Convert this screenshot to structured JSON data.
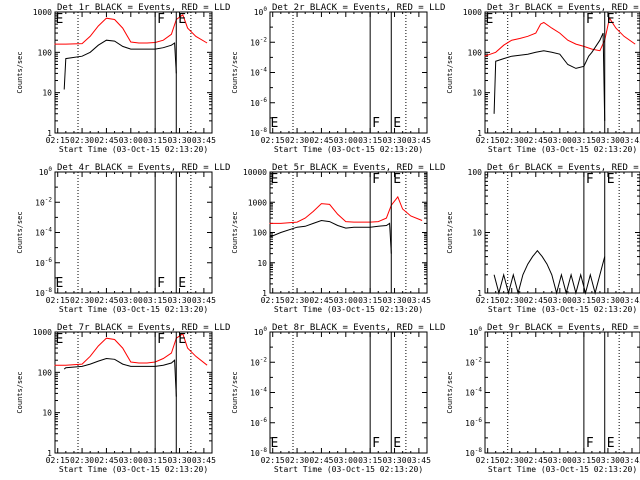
{
  "chart_data": [
    {
      "title": "Det 1r BLACK = Events, RED = LLD",
      "type": "line",
      "ylabel": "Counts/sec",
      "xlabel": "Start Time (03-Oct-15 02:13:20)",
      "yscale": "log",
      "ylim": [
        1,
        1000
      ],
      "yticks": [
        "1",
        "10",
        "100",
        "1000"
      ],
      "xticks": [
        "02:15",
        "02:30",
        "02:45",
        "03:00",
        "03:15",
        "03:30",
        "03:45"
      ],
      "markers": [
        {
          "label": "E",
          "x": "02:13"
        },
        {
          "label": "F",
          "x": "03:15"
        },
        {
          "label": "E",
          "x": "03:28"
        }
      ],
      "series": [
        {
          "color": "#ff0000",
          "x": [
            "02:13",
            "02:20",
            "02:30",
            "02:35",
            "02:40",
            "02:45",
            "02:50",
            "02:55",
            "03:00",
            "03:05",
            "03:10",
            "03:15",
            "03:20",
            "03:25",
            "03:28",
            "03:32",
            "03:35",
            "03:40",
            "03:47"
          ],
          "values": [
            160,
            160,
            165,
            250,
            450,
            700,
            650,
            400,
            180,
            170,
            170,
            175,
            200,
            280,
            650,
            850,
            400,
            250,
            170
          ]
        },
        {
          "color": "#000000",
          "x": [
            "02:19",
            "02:20",
            "02:30",
            "02:35",
            "02:40",
            "02:45",
            "02:50",
            "02:55",
            "03:00",
            "03:05",
            "03:10",
            "03:15",
            "03:20",
            "03:25",
            "03:27",
            "03:28"
          ],
          "values": [
            12,
            70,
            80,
            100,
            150,
            200,
            190,
            140,
            120,
            120,
            120,
            120,
            130,
            150,
            170,
            30
          ]
        }
      ]
    },
    {
      "title": "Det 2r BLACK = Events, RED = LLD",
      "type": "line",
      "ylabel": "Counts/sec",
      "xlabel": "Start Time (03-Oct-15 02:13:20)",
      "yscale": "log",
      "ylim": [
        1e-08,
        1
      ],
      "yticks": [
        "10^-8",
        "10^-6",
        "10^-4",
        "10^-2",
        "10^0"
      ],
      "xticks": [
        "02:15",
        "02:30",
        "02:45",
        "03:00",
        "03:15",
        "03:30",
        "03:45"
      ],
      "markers": [
        {
          "label": "E",
          "x": "02:13"
        },
        {
          "label": "F",
          "x": "03:15"
        },
        {
          "label": "E",
          "x": "03:28"
        }
      ],
      "series": []
    },
    {
      "title": "Det 3r BLACK = Events, RED = LLD",
      "type": "line",
      "ylabel": "Counts/sec",
      "xlabel": "Start Time (03-Oct-15 02:13:20)",
      "yscale": "log",
      "ylim": [
        1,
        1000
      ],
      "yticks": [
        "1",
        "10",
        "100",
        "1000"
      ],
      "xticks": [
        "02:15",
        "02:30",
        "02:45",
        "03:00",
        "03:15",
        "03:30",
        "03:45"
      ],
      "markers": [
        {
          "label": "E",
          "x": "02:13"
        },
        {
          "label": "F",
          "x": "03:15"
        },
        {
          "label": "E",
          "x": "03:28"
        }
      ],
      "series": [
        {
          "color": "#ff0000",
          "x": [
            "02:13",
            "02:20",
            "02:25",
            "02:30",
            "02:35",
            "02:40",
            "02:45",
            "02:48",
            "02:50",
            "02:55",
            "03:00",
            "03:05",
            "03:10",
            "03:15",
            "03:20",
            "03:25",
            "03:28",
            "03:31",
            "03:35",
            "03:40",
            "03:47"
          ],
          "values": [
            80,
            100,
            150,
            200,
            220,
            250,
            300,
            500,
            550,
            400,
            300,
            200,
            160,
            140,
            120,
            110,
            200,
            700,
            400,
            250,
            160
          ]
        },
        {
          "color": "#000000",
          "x": [
            "02:19",
            "02:20",
            "02:25",
            "02:30",
            "02:35",
            "02:40",
            "02:45",
            "02:50",
            "02:55",
            "03:00",
            "03:05",
            "03:10",
            "03:15",
            "03:18",
            "03:20",
            "03:25",
            "03:27",
            "03:28"
          ],
          "values": [
            3,
            60,
            70,
            80,
            85,
            90,
            100,
            110,
            100,
            90,
            50,
            40,
            45,
            80,
            100,
            200,
            300,
            2
          ]
        }
      ]
    },
    {
      "title": "Det 4r BLACK = Events, RED = LLD",
      "type": "line",
      "ylabel": "Counts/sec",
      "xlabel": "Start Time (03-Oct-15 02:13:20)",
      "yscale": "log",
      "ylim": [
        1e-08,
        1
      ],
      "yticks": [
        "10^-8",
        "10^-6",
        "10^-4",
        "10^-2",
        "10^0"
      ],
      "xticks": [
        "02:15",
        "02:30",
        "02:45",
        "03:00",
        "03:15",
        "03:30",
        "03:45"
      ],
      "markers": [
        {
          "label": "E",
          "x": "02:13"
        },
        {
          "label": "F",
          "x": "03:15"
        },
        {
          "label": "E",
          "x": "03:28"
        }
      ],
      "series": []
    },
    {
      "title": "Det 5r BLACK = Events, RED = LLD",
      "type": "line",
      "ylabel": "Counts/sec",
      "xlabel": "Start Time (03-Oct-15 02:13:20)",
      "yscale": "log",
      "ylim": [
        1,
        10000
      ],
      "yticks": [
        "1",
        "10",
        "100",
        "1000",
        "10000"
      ],
      "xticks": [
        "02:15",
        "02:30",
        "02:45",
        "03:00",
        "03:15",
        "03:30",
        "03:45"
      ],
      "markers": [
        {
          "label": "E",
          "x": "02:13"
        },
        {
          "label": "F",
          "x": "03:15"
        },
        {
          "label": "E",
          "x": "03:28"
        }
      ],
      "series": [
        {
          "color": "#ff0000",
          "x": [
            "02:13",
            "02:20",
            "02:30",
            "02:35",
            "02:40",
            "02:45",
            "02:50",
            "02:55",
            "03:00",
            "03:05",
            "03:10",
            "03:15",
            "03:20",
            "03:25",
            "03:28",
            "03:32",
            "03:35",
            "03:40",
            "03:47"
          ],
          "values": [
            200,
            200,
            220,
            300,
            500,
            900,
            850,
            400,
            230,
            220,
            220,
            220,
            230,
            300,
            800,
            1500,
            600,
            350,
            250
          ]
        },
        {
          "color": "#000000",
          "x": [
            "02:13",
            "02:20",
            "02:30",
            "02:35",
            "02:40",
            "02:45",
            "02:50",
            "02:55",
            "03:00",
            "03:05",
            "03:10",
            "03:15",
            "03:20",
            "03:25",
            "03:27",
            "03:28"
          ],
          "values": [
            70,
            100,
            150,
            160,
            200,
            250,
            230,
            170,
            140,
            150,
            150,
            150,
            160,
            170,
            200,
            20
          ]
        }
      ]
    },
    {
      "title": "Det 6r BLACK = Events, RED = LLD",
      "type": "line",
      "ylabel": "Counts/sec",
      "xlabel": "Start Time (03-Oct-15 02:13:20)",
      "yscale": "log",
      "ylim": [
        1,
        100
      ],
      "yticks": [
        "1",
        "10",
        "100"
      ],
      "xticks": [
        "02:15",
        "02:30",
        "02:45",
        "03:00",
        "03:15",
        "03:30",
        "03:45"
      ],
      "markers": [
        {
          "label": "F",
          "x": "03:15"
        },
        {
          "label": "E",
          "x": "03:28"
        }
      ],
      "series": [
        {
          "color": "#000000",
          "x": [
            "02:19",
            "02:22",
            "02:25",
            "02:28",
            "02:31",
            "02:34",
            "02:37",
            "02:40",
            "02:43",
            "02:46",
            "02:49",
            "02:52",
            "02:55",
            "02:58",
            "03:01",
            "03:04",
            "03:07",
            "03:10",
            "03:13",
            "03:16",
            "03:19",
            "03:22",
            "03:25",
            "03:28"
          ],
          "values": [
            2,
            1,
            2,
            1,
            2,
            1,
            2,
            3,
            4,
            5,
            4,
            3,
            2,
            1,
            2,
            1,
            2,
            1,
            2,
            1,
            2,
            1,
            2,
            4
          ]
        }
      ]
    },
    {
      "title": "Det 7r BLACK = Events, RED = LLD",
      "type": "line",
      "ylabel": "Counts/sec",
      "xlabel": "Start Time (03-Oct-15 02:13:20)",
      "yscale": "log",
      "ylim": [
        1,
        1000
      ],
      "yticks": [
        "1",
        "10",
        "100",
        "1000"
      ],
      "xticks": [
        "02:15",
        "02:30",
        "02:45",
        "03:00",
        "03:15",
        "03:30",
        "03:45"
      ],
      "markers": [
        {
          "label": "E",
          "x": "02:13"
        },
        {
          "label": "F",
          "x": "03:15"
        },
        {
          "label": "E",
          "x": "03:28"
        }
      ],
      "series": [
        {
          "color": "#ff0000",
          "x": [
            "02:13",
            "02:20",
            "02:30",
            "02:35",
            "02:40",
            "02:45",
            "02:50",
            "02:55",
            "03:00",
            "03:05",
            "03:10",
            "03:15",
            "03:20",
            "03:25",
            "03:28",
            "03:32",
            "03:35",
            "03:40",
            "03:47"
          ],
          "values": [
            150,
            150,
            160,
            250,
            450,
            700,
            650,
            400,
            180,
            170,
            170,
            180,
            220,
            300,
            700,
            900,
            400,
            250,
            150
          ]
        },
        {
          "color": "#000000",
          "x": [
            "02:19",
            "02:20",
            "02:30",
            "02:35",
            "02:40",
            "02:45",
            "02:50",
            "02:55",
            "03:00",
            "03:05",
            "03:10",
            "03:15",
            "03:20",
            "03:25",
            "03:27",
            "03:28"
          ],
          "values": [
            120,
            130,
            140,
            160,
            190,
            220,
            210,
            160,
            140,
            140,
            140,
            140,
            150,
            170,
            200,
            25
          ]
        }
      ]
    },
    {
      "title": "Det 8r BLACK = Events, RED = LLD",
      "type": "line",
      "ylabel": "Counts/sec",
      "xlabel": "Start Time (03-Oct-15 02:13:20)",
      "yscale": "log",
      "ylim": [
        1e-08,
        1
      ],
      "yticks": [
        "10^-8",
        "10^-6",
        "10^-4",
        "10^-2",
        "10^0"
      ],
      "xticks": [
        "02:15",
        "02:30",
        "02:45",
        "03:00",
        "03:15",
        "03:30",
        "03:45"
      ],
      "markers": [
        {
          "label": "E",
          "x": "02:13"
        },
        {
          "label": "F",
          "x": "03:15"
        },
        {
          "label": "E",
          "x": "03:28"
        }
      ],
      "series": []
    },
    {
      "title": "Det 9r BLACK = Events, RED = LLD",
      "type": "line",
      "ylabel": "Counts/sec",
      "xlabel": "Start Time (03-Oct-15 02:13:20)",
      "yscale": "log",
      "ylim": [
        1e-08,
        1
      ],
      "yticks": [
        "10^-8",
        "10^-6",
        "10^-4",
        "10^-2",
        "10^0"
      ],
      "xticks": [
        "02:15",
        "02:30",
        "02:45",
        "03:00",
        "03:15",
        "03:30",
        "03:45"
      ],
      "markers": [
        {
          "label": "F",
          "x": "03:15"
        },
        {
          "label": "E",
          "x": "03:28"
        }
      ],
      "series": []
    }
  ]
}
